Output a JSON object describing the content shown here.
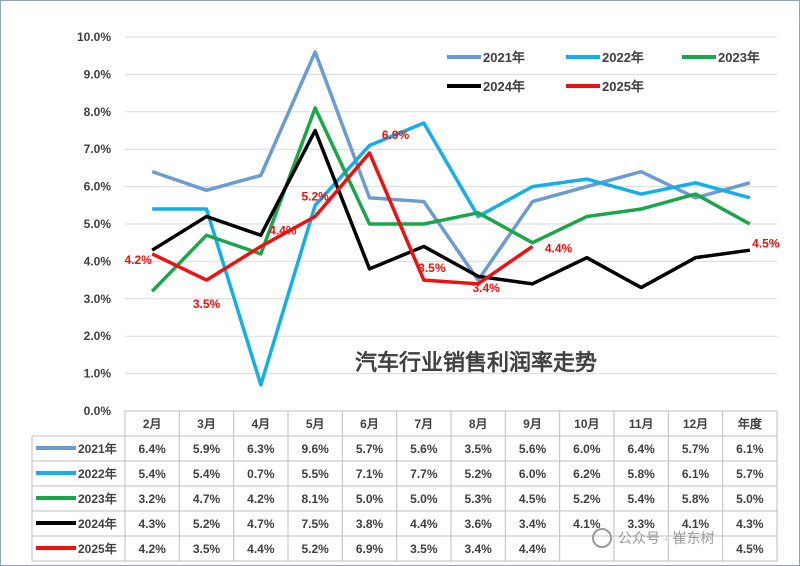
{
  "chart_data": {
    "type": "line",
    "title": "汽车行业销售利润率走势",
    "categories": [
      "2月",
      "3月",
      "4月",
      "5月",
      "6月",
      "7月",
      "8月",
      "9月",
      "10月",
      "11月",
      "12月",
      "年度"
    ],
    "ylim": [
      0,
      10
    ],
    "yticks": [
      "0.0%",
      "1.0%",
      "2.0%",
      "3.0%",
      "4.0%",
      "5.0%",
      "6.0%",
      "7.0%",
      "8.0%",
      "9.0%",
      "10.0%"
    ],
    "grid": true,
    "legend_position": "top-right",
    "series": [
      {
        "name": "2021年",
        "color": "#6a9bd1",
        "values": [
          6.4,
          5.9,
          6.3,
          9.6,
          5.7,
          5.6,
          3.5,
          5.6,
          6.0,
          6.4,
          5.7,
          6.1
        ],
        "table": [
          "6.4%",
          "5.9%",
          "6.3%",
          "9.6%",
          "5.7%",
          "5.6%",
          "3.5%",
          "5.6%",
          "6.0%",
          "6.4%",
          "5.7%",
          "6.1%"
        ]
      },
      {
        "name": "2022年",
        "color": "#14aee8",
        "values": [
          5.4,
          5.4,
          0.7,
          5.5,
          7.1,
          7.7,
          5.2,
          6.0,
          6.2,
          5.8,
          6.1,
          5.7
        ],
        "table": [
          "5.4%",
          "5.4%",
          "0.7%",
          "5.5%",
          "7.1%",
          "7.7%",
          "5.2%",
          "6.0%",
          "6.2%",
          "5.8%",
          "6.1%",
          "5.7%"
        ]
      },
      {
        "name": "2023年",
        "color": "#1aa64b",
        "values": [
          3.2,
          4.7,
          4.2,
          8.1,
          5.0,
          5.0,
          5.3,
          4.5,
          5.2,
          5.4,
          5.8,
          5.0
        ],
        "table": [
          "3.2%",
          "4.7%",
          "4.2%",
          "8.1%",
          "5.0%",
          "5.0%",
          "5.3%",
          "4.5%",
          "5.2%",
          "5.4%",
          "5.8%",
          "5.0%"
        ]
      },
      {
        "name": "2024年",
        "color": "#000000",
        "values": [
          4.3,
          5.2,
          4.7,
          7.5,
          3.8,
          4.4,
          3.6,
          3.4,
          4.1,
          3.3,
          4.1,
          4.3
        ],
        "table": [
          "4.3%",
          "5.2%",
          "4.7%",
          "7.5%",
          "3.8%",
          "4.4%",
          "3.6%",
          "3.4%",
          "4.1%",
          "3.3%",
          "4.1%",
          "4.3%"
        ]
      },
      {
        "name": "2025年",
        "color": "#ee1111",
        "values": [
          4.2,
          3.5,
          4.4,
          5.2,
          6.9,
          3.5,
          3.4,
          4.4,
          null,
          null,
          null,
          4.5
        ],
        "table": [
          "4.2%",
          "3.5%",
          "4.4%",
          "5.2%",
          "6.9%",
          "3.5%",
          "3.4%",
          "4.4%",
          "",
          "",
          "",
          "4.5%"
        ]
      }
    ],
    "annotations": {
      "series": "2025年",
      "labels": [
        "4.2%",
        "3.5%",
        "4.4%",
        "5.2%",
        "6.9%",
        "3.5%",
        "3.4%",
        "4.4%",
        "4.5%"
      ]
    }
  },
  "watermark": "公众号 · 崔东树"
}
